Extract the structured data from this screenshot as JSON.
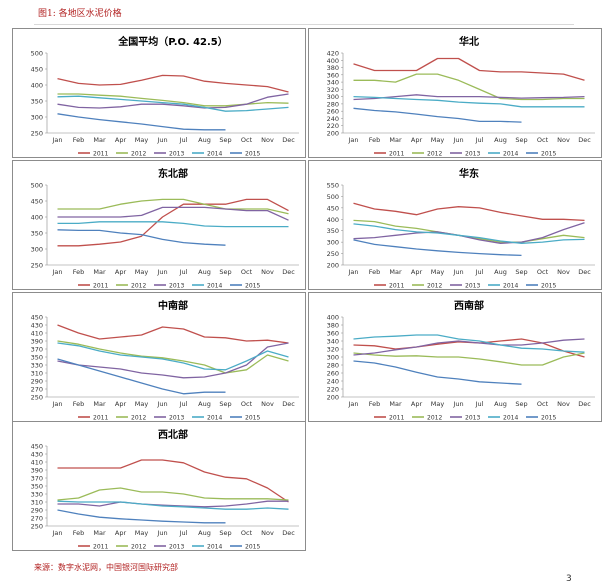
{
  "figure_title": "图1: 各地区水泥价格",
  "source": "来源：数字水泥网，中国银河国际研究部",
  "page_number": "3",
  "months": [
    "Jan",
    "Feb",
    "Mar",
    "Apr",
    "May",
    "Jun",
    "Jul",
    "Aug",
    "Sep",
    "Oct",
    "Nov",
    "Dec"
  ],
  "series_colors": {
    "2011": "#c0504d",
    "2012": "#9bbb59",
    "2013": "#8064a2",
    "2014": "#4bacc6",
    "2015": "#4f81bd"
  },
  "chart_data": [
    {
      "type": "line",
      "title": "全国平均（P.O. 42.5）",
      "ylim": [
        250,
        500
      ],
      "yticks": [
        250,
        300,
        350,
        400,
        450,
        500
      ],
      "series": [
        {
          "name": "2011",
          "values": [
            420,
            405,
            400,
            402,
            415,
            430,
            428,
            412,
            405,
            400,
            395,
            378
          ]
        },
        {
          "name": "2012",
          "values": [
            372,
            372,
            368,
            365,
            358,
            352,
            345,
            335,
            335,
            340,
            345,
            343
          ]
        },
        {
          "name": "2013",
          "values": [
            340,
            330,
            328,
            332,
            340,
            340,
            335,
            328,
            330,
            340,
            362,
            372
          ]
        },
        {
          "name": "2014",
          "values": [
            363,
            365,
            360,
            355,
            350,
            345,
            340,
            330,
            318,
            320,
            325,
            330
          ]
        },
        {
          "name": "2015",
          "values": [
            310,
            300,
            292,
            285,
            278,
            270,
            262,
            260,
            260
          ]
        }
      ]
    },
    {
      "type": "line",
      "title": "华北",
      "ylim": [
        200,
        420
      ],
      "yticks": [
        200,
        220,
        240,
        260,
        280,
        300,
        320,
        340,
        360,
        380,
        400,
        420
      ],
      "series": [
        {
          "name": "2011",
          "values": [
            390,
            372,
            372,
            372,
            405,
            405,
            372,
            368,
            368,
            365,
            362,
            345
          ]
        },
        {
          "name": "2012",
          "values": [
            345,
            345,
            340,
            362,
            362,
            345,
            320,
            295,
            292,
            292,
            295,
            295
          ]
        },
        {
          "name": "2013",
          "values": [
            292,
            295,
            300,
            305,
            300,
            300,
            300,
            298,
            296,
            297,
            298,
            300
          ]
        },
        {
          "name": "2014",
          "values": [
            300,
            298,
            295,
            292,
            290,
            285,
            282,
            280,
            272,
            272,
            272,
            272
          ]
        },
        {
          "name": "2015",
          "values": [
            268,
            262,
            258,
            252,
            245,
            240,
            232,
            232,
            230
          ]
        }
      ]
    },
    {
      "type": "line",
      "title": "东北部",
      "ylim": [
        250,
        500
      ],
      "yticks": [
        250,
        300,
        350,
        400,
        450,
        500
      ],
      "series": [
        {
          "name": "2011",
          "values": [
            310,
            310,
            315,
            322,
            340,
            400,
            440,
            440,
            440,
            455,
            455,
            420
          ]
        },
        {
          "name": "2012",
          "values": [
            425,
            425,
            425,
            440,
            450,
            455,
            455,
            440,
            425,
            425,
            425,
            410
          ]
        },
        {
          "name": "2013",
          "values": [
            400,
            400,
            400,
            400,
            405,
            430,
            430,
            430,
            425,
            420,
            420,
            390
          ]
        },
        {
          "name": "2014",
          "values": [
            380,
            380,
            385,
            385,
            385,
            385,
            380,
            372,
            370,
            370,
            370,
            370
          ]
        },
        {
          "name": "2015",
          "values": [
            360,
            358,
            358,
            350,
            345,
            330,
            320,
            315,
            312
          ]
        }
      ]
    },
    {
      "type": "line",
      "title": "华东",
      "ylim": [
        200,
        550
      ],
      "yticks": [
        200,
        250,
        300,
        350,
        400,
        450,
        500,
        550
      ],
      "series": [
        {
          "name": "2011",
          "values": [
            470,
            445,
            435,
            420,
            445,
            455,
            450,
            430,
            415,
            400,
            400,
            395
          ]
        },
        {
          "name": "2012",
          "values": [
            395,
            390,
            370,
            360,
            345,
            330,
            315,
            300,
            300,
            315,
            330,
            320
          ]
        },
        {
          "name": "2013",
          "values": [
            315,
            320,
            330,
            340,
            345,
            330,
            310,
            295,
            300,
            320,
            355,
            385
          ]
        },
        {
          "name": "2014",
          "values": [
            380,
            370,
            355,
            345,
            340,
            330,
            320,
            305,
            295,
            300,
            310,
            312
          ]
        },
        {
          "name": "2015",
          "values": [
            310,
            290,
            280,
            270,
            262,
            255,
            250,
            245,
            242
          ]
        }
      ]
    },
    {
      "type": "line",
      "title": "中南部",
      "ylim": [
        250,
        450
      ],
      "yticks": [
        250,
        270,
        290,
        310,
        330,
        350,
        370,
        390,
        410,
        430,
        450
      ],
      "series": [
        {
          "name": "2011",
          "values": [
            430,
            410,
            395,
            400,
            405,
            425,
            420,
            400,
            398,
            390,
            392,
            385
          ]
        },
        {
          "name": "2012",
          "values": [
            390,
            382,
            370,
            360,
            352,
            348,
            340,
            330,
            310,
            318,
            355,
            340
          ]
        },
        {
          "name": "2013",
          "values": [
            340,
            330,
            325,
            320,
            310,
            305,
            298,
            300,
            310,
            330,
            375,
            385
          ]
        },
        {
          "name": "2014",
          "values": [
            385,
            378,
            365,
            355,
            350,
            345,
            335,
            320,
            318,
            340,
            365,
            350
          ]
        },
        {
          "name": "2015",
          "values": [
            345,
            330,
            315,
            300,
            285,
            270,
            258,
            262,
            262
          ]
        }
      ]
    },
    {
      "type": "line",
      "title": "西南部",
      "ylim": [
        200,
        400
      ],
      "yticks": [
        200,
        220,
        240,
        260,
        280,
        300,
        320,
        340,
        360,
        380,
        400
      ],
      "series": [
        {
          "name": "2011",
          "values": [
            330,
            328,
            320,
            325,
            332,
            338,
            335,
            340,
            345,
            335,
            315,
            300
          ]
        },
        {
          "name": "2012",
          "values": [
            310,
            305,
            302,
            303,
            300,
            300,
            295,
            288,
            280,
            280,
            300,
            310
          ]
        },
        {
          "name": "2013",
          "values": [
            305,
            310,
            318,
            325,
            335,
            340,
            335,
            330,
            330,
            335,
            342,
            345
          ]
        },
        {
          "name": "2014",
          "values": [
            345,
            350,
            352,
            355,
            355,
            345,
            340,
            330,
            322,
            320,
            315,
            312
          ]
        },
        {
          "name": "2015",
          "values": [
            290,
            285,
            275,
            262,
            250,
            245,
            238,
            235,
            232
          ]
        }
      ]
    },
    {
      "type": "line",
      "title": "西北部",
      "ylim": [
        250,
        450
      ],
      "yticks": [
        250,
        270,
        290,
        310,
        330,
        350,
        370,
        390,
        410,
        430,
        450
      ],
      "series": [
        {
          "name": "2011",
          "values": [
            395,
            395,
            395,
            395,
            415,
            415,
            408,
            385,
            372,
            368,
            345,
            310
          ]
        },
        {
          "name": "2012",
          "values": [
            315,
            320,
            340,
            345,
            335,
            335,
            330,
            320,
            318,
            318,
            318,
            315
          ]
        },
        {
          "name": "2013",
          "values": [
            305,
            305,
            300,
            310,
            305,
            302,
            300,
            298,
            300,
            305,
            312,
            312
          ]
        },
        {
          "name": "2014",
          "values": [
            312,
            310,
            310,
            310,
            305,
            300,
            298,
            295,
            292,
            292,
            295,
            292
          ]
        },
        {
          "name": "2015",
          "values": [
            290,
            280,
            272,
            268,
            265,
            262,
            260,
            258,
            258
          ]
        }
      ]
    }
  ]
}
